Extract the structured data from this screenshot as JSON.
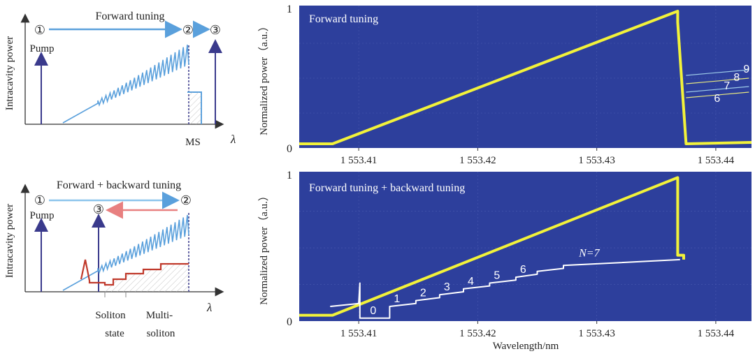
{
  "colors": {
    "plot_bg": "#2d3f9c",
    "trace": "#f2f23a",
    "white_trace": "#ffffff",
    "tuning_blue": "#5aa0dc",
    "backward_red": "#e88080",
    "soliton_red": "#c0392b",
    "pump_arrow": "#3a3a8c"
  },
  "schematics": {
    "top": {
      "title": "Forward tuning",
      "ylabel": "Intracavity power",
      "xlabel": "λ",
      "markers": [
        "①",
        "②",
        "③"
      ],
      "pump_label": "Pump",
      "ms_label": "MS"
    },
    "bottom": {
      "title": "Forward + backward tuning",
      "ylabel": "Intracavity power",
      "xlabel": "λ",
      "markers": [
        "①",
        "③",
        "②"
      ],
      "pump_label": "Pump",
      "soliton_label_1": "Soliton",
      "soliton_label_2": "state",
      "multi_label_1": "Multi-",
      "multi_label_2": "soliton"
    }
  },
  "chart_data": [
    {
      "type": "line",
      "title": "Forward tuning",
      "xlabel": "",
      "ylabel": "Normalized power（a.u.）",
      "xlim": [
        1553.405,
        1553.443
      ],
      "ylim": [
        0,
        1.02
      ],
      "xticks": [
        1553.41,
        1553.42,
        1553.43,
        1553.44
      ],
      "xtick_labels": [
        "1 553.41",
        "1 553.42",
        "1 553.43",
        "1 553.44"
      ],
      "yticks": [
        0,
        1
      ],
      "ytick_labels": [
        "0",
        "1"
      ],
      "series": [
        {
          "name": "forward",
          "x": [
            1553.405,
            1553.4078,
            1553.4368,
            1553.4368,
            1553.4375,
            1553.443
          ],
          "y": [
            0.03,
            0.03,
            0.98,
            0.9,
            0.03,
            0.04
          ]
        }
      ],
      "step_labels": [
        "6",
        "7",
        "8",
        "9"
      ],
      "step_levels": [
        0.36,
        0.4,
        0.46,
        0.52
      ]
    },
    {
      "type": "line",
      "title": "Forward tuning + backward tuning",
      "xlabel": "Wavelength/nm",
      "ylabel": "Normalized power（a.u.）",
      "xlim": [
        1553.405,
        1553.443
      ],
      "ylim": [
        0,
        1.02
      ],
      "xticks": [
        1553.41,
        1553.42,
        1553.43,
        1553.44
      ],
      "xtick_labels": [
        "1 553.41",
        "1 553.42",
        "1 553.43",
        "1 553.44"
      ],
      "yticks": [
        0,
        1
      ],
      "ytick_labels": [
        "0",
        "1"
      ],
      "series": [
        {
          "name": "forward",
          "x": [
            1553.405,
            1553.4078,
            1553.4368,
            1553.4368,
            1553.4373,
            1553.4373
          ],
          "y": [
            0.04,
            0.04,
            0.98,
            0.45,
            0.45,
            0.42
          ]
        },
        {
          "name": "backward",
          "x": [
            1553.4076,
            1553.41,
            1553.4101,
            1553.4101,
            1553.4106,
            1553.4106,
            1553.4126,
            1553.4126,
            1553.4148,
            1553.4148,
            1553.4168,
            1553.4168,
            1553.4188,
            1553.4188,
            1553.421,
            1553.421,
            1553.4232,
            1553.4232,
            1553.425,
            1553.425,
            1553.4272,
            1553.4272,
            1553.437
          ],
          "y": [
            0.1,
            0.12,
            0.26,
            0.02,
            0.02,
            0.02,
            0.02,
            0.1,
            0.12,
            0.14,
            0.16,
            0.18,
            0.2,
            0.22,
            0.24,
            0.26,
            0.28,
            0.3,
            0.32,
            0.34,
            0.36,
            0.38,
            0.42
          ]
        }
      ],
      "step_labels": [
        "0",
        "1",
        "2",
        "3",
        "4",
        "5",
        "6"
      ],
      "n_label": "N=7"
    }
  ]
}
